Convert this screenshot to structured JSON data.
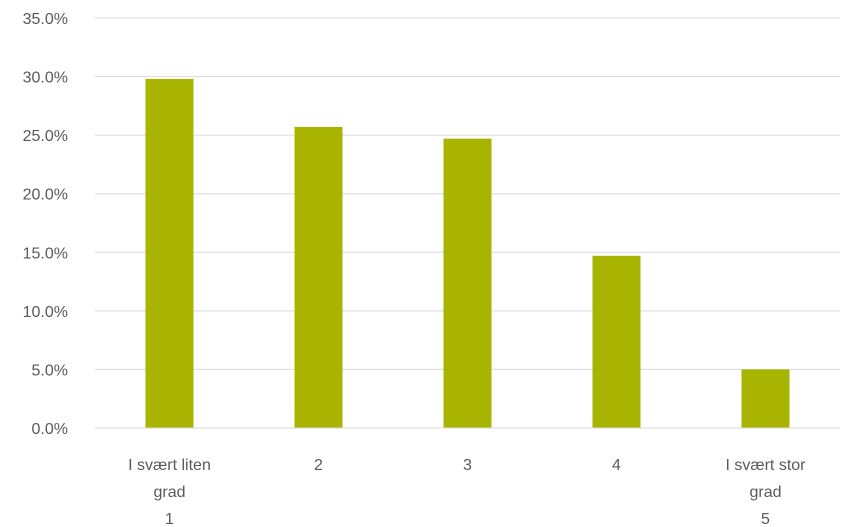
{
  "chart_data": {
    "type": "bar",
    "title": "",
    "xlabel": "",
    "ylabel": "",
    "categories": [
      [
        "I svært liten",
        "grad",
        "1"
      ],
      [
        "2"
      ],
      [
        "3"
      ],
      [
        "4"
      ],
      [
        "I svært stor",
        "grad",
        "5"
      ]
    ],
    "values": [
      29.8,
      25.7,
      24.7,
      14.7,
      5.0
    ],
    "ylim": [
      0,
      35
    ],
    "yticks": [
      "0.0%",
      "5.0%",
      "10.0%",
      "15.0%",
      "20.0%",
      "25.0%",
      "30.0%",
      "35.0%"
    ],
    "grid": true,
    "legend": "none",
    "bar_color": "#a9b400"
  }
}
